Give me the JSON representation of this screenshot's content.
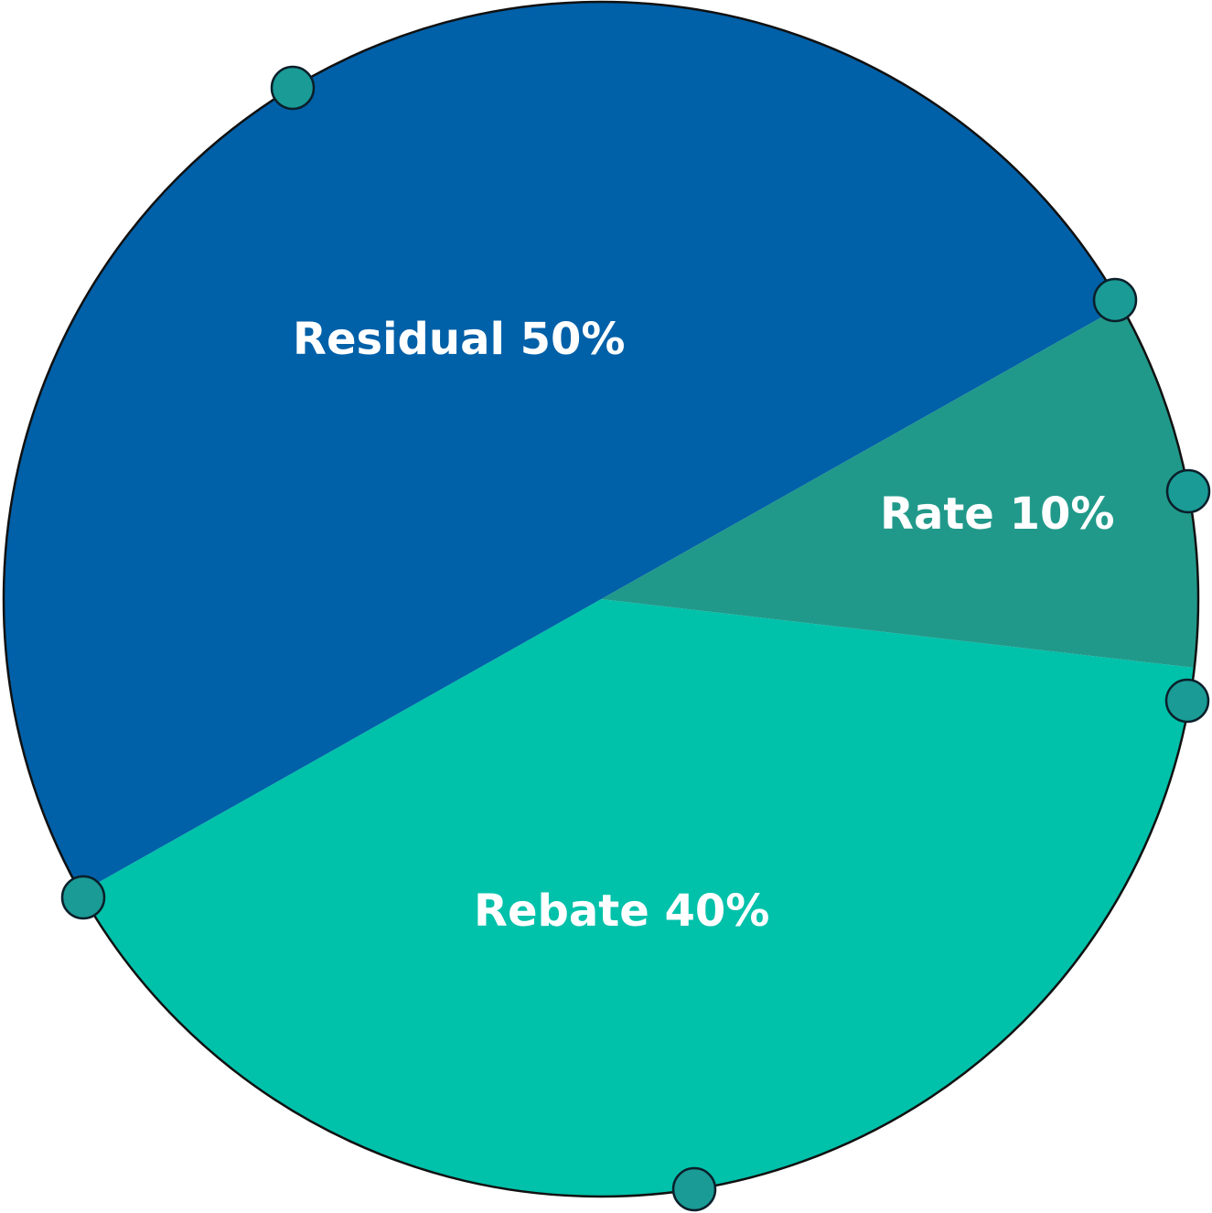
{
  "chart_data": {
    "type": "pie",
    "slices": [
      {
        "label": "Residual 50%",
        "value": 50,
        "color": "#0060A8"
      },
      {
        "label": "Rate 10%",
        "value": 10,
        "color": "#21998A"
      },
      {
        "label": "Rebate 40%",
        "value": 40,
        "color": "#00C1AA"
      }
    ]
  },
  "colors": {
    "handle": "#1A9B96",
    "outline": "#111111",
    "label": "#ffffff"
  }
}
